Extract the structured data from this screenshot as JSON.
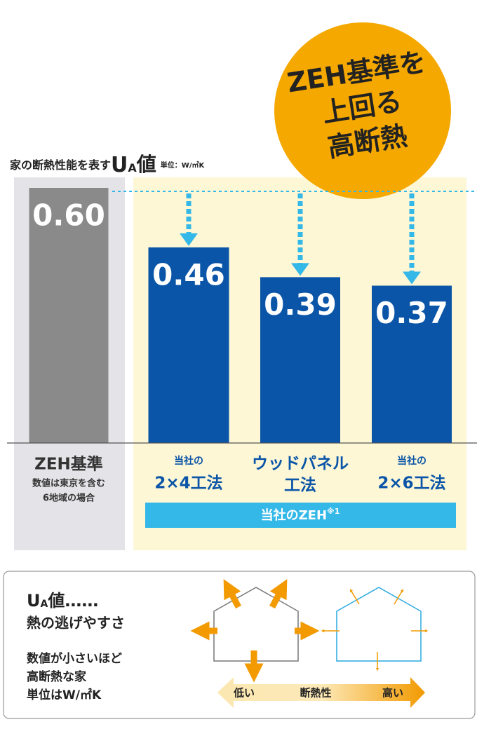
{
  "chart_data": {
    "type": "bar",
    "title": {
      "text": "家の断熱性能を表す",
      "symbol": "U",
      "subscript": "A",
      "suffix": "値",
      "unit": "単位：W/㎡K"
    },
    "badge": [
      "ZEH基準を",
      "上回る",
      "高断熱"
    ],
    "categories": [
      {
        "name": [
          "ZEH基準"
        ]
      },
      {
        "prefix": "当社の",
        "name": [
          "2×4工法"
        ]
      },
      {
        "name": [
          "ウッドパネル",
          "工法"
        ]
      },
      {
        "prefix": "当社の",
        "name": [
          "2×6工法"
        ]
      }
    ],
    "zeh_note": [
      "数値は東京を含む",
      "6地域の場合"
    ],
    "values": [
      0.6,
      0.46,
      0.39,
      0.37
    ],
    "value_labels": [
      "0.60",
      "0.46",
      "0.39",
      "0.37"
    ],
    "colors": [
      "#8a8a8a",
      "#0a55a8",
      "#0a55a8",
      "#0a55a8"
    ],
    "ylim": [
      0,
      0.6
    ],
    "group_label": "当社のZEH",
    "group_label_note": "※1"
  },
  "legend_box": {
    "symbol": "U",
    "subscript": "A",
    "suffix": "値……",
    "subtitle": "熱の逃げやすさ",
    "lines": [
      "数値が小さいほど",
      "高断熱な家",
      "単位はW/㎡K"
    ],
    "scale": {
      "low": "低い",
      "label": "断熱性",
      "high": "高い"
    }
  }
}
